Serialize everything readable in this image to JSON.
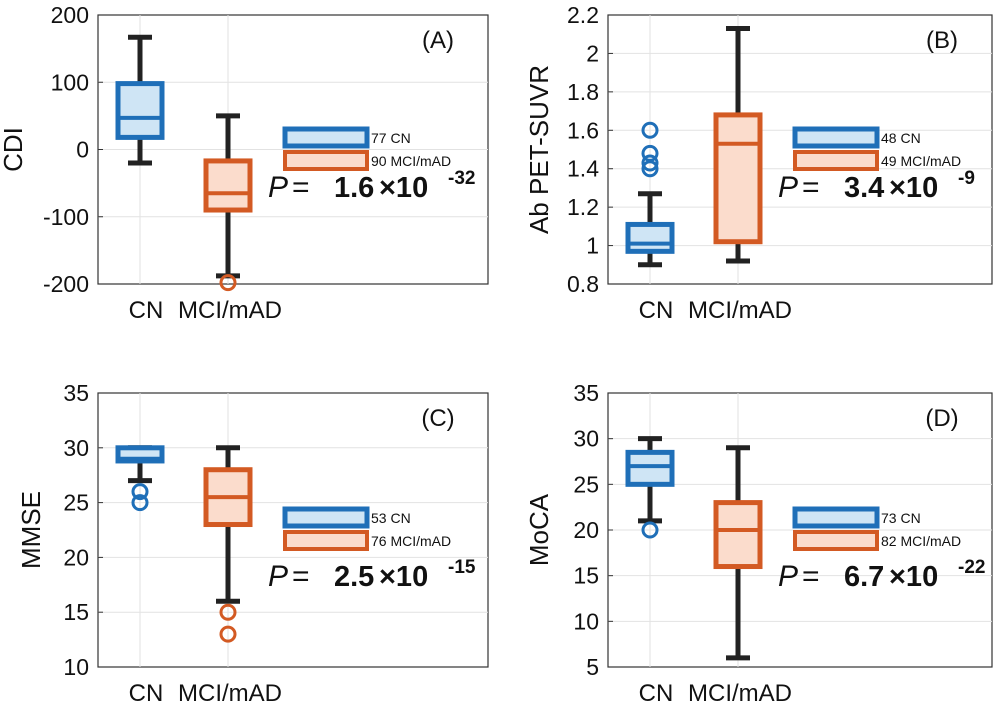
{
  "colors": {
    "cn_edge": "#1f6fb8",
    "cn_fill": "#cfe5f5",
    "mci_edge": "#d35a23",
    "mci_fill": "#fbdccc",
    "whisker": "#222222",
    "grid": "#e2e2e2",
    "axis": "#333333"
  },
  "chart_data": [
    {
      "type": "box",
      "panel_label": "(A)",
      "ylabel": "CDI",
      "ylim": [
        -200,
        200
      ],
      "yticks": [
        -200,
        -100,
        0,
        100,
        200
      ],
      "ytick_labels": [
        "-200",
        "-100",
        "0",
        "100",
        "200"
      ],
      "categories": [
        "CN",
        "MCI/mAD"
      ],
      "series": [
        {
          "name": "CN",
          "whisker_low": -20,
          "q1": 18,
          "median": 47,
          "q3": 98,
          "whisker_high": 167,
          "outliers": []
        },
        {
          "name": "MCI/mAD",
          "whisker_low": -188,
          "q1": -90,
          "median": -65,
          "q3": -17,
          "whisker_high": 50,
          "outliers": [
            -198
          ]
        }
      ],
      "legend": [
        "77 CN",
        "90 MCI/mAD"
      ],
      "p_label": "P",
      "p_eq": "=",
      "p_mantissa": "1.6",
      "p_times": "×10",
      "p_exponent": "-32"
    },
    {
      "type": "box",
      "panel_label": "(B)",
      "ylabel": "Ab PET-SUVR",
      "ylim": [
        0.8,
        2.2
      ],
      "yticks": [
        0.8,
        1.0,
        1.2,
        1.4,
        1.6,
        1.8,
        2.0,
        2.2
      ],
      "ytick_labels": [
        "0.8",
        "1",
        "1.2",
        "1.4",
        "1.6",
        "1.8",
        "2",
        "2.2"
      ],
      "categories": [
        "CN",
        "MCI/mAD"
      ],
      "series": [
        {
          "name": "CN",
          "whisker_low": 0.9,
          "q1": 0.97,
          "median": 1.01,
          "q3": 1.11,
          "whisker_high": 1.27,
          "outliers": [
            1.4,
            1.43,
            1.48,
            1.6
          ]
        },
        {
          "name": "MCI/mAD",
          "whisker_low": 0.92,
          "q1": 1.02,
          "median": 1.53,
          "q3": 1.68,
          "whisker_high": 2.13,
          "outliers": []
        }
      ],
      "legend": [
        "48 CN",
        "49 MCI/mAD"
      ],
      "p_label": "P",
      "p_eq": "=",
      "p_mantissa": "3.4",
      "p_times": "×10",
      "p_exponent": "-9"
    },
    {
      "type": "box",
      "panel_label": "(C)",
      "ylabel": "MMSE",
      "ylim": [
        10,
        35
      ],
      "yticks": [
        10,
        15,
        20,
        25,
        30,
        35
      ],
      "ytick_labels": [
        "10",
        "15",
        "20",
        "25",
        "30",
        "35"
      ],
      "categories": [
        "CN",
        "MCI/mAD"
      ],
      "series": [
        {
          "name": "CN",
          "whisker_low": 27,
          "q1": 28.8,
          "median": 29,
          "q3": 30,
          "whisker_high": 30,
          "outliers": [
            26,
            25
          ]
        },
        {
          "name": "MCI/mAD",
          "whisker_low": 16,
          "q1": 23,
          "median": 25.5,
          "q3": 28,
          "whisker_high": 30,
          "outliers": [
            15,
            13
          ]
        }
      ],
      "legend": [
        "53 CN",
        "76 MCI/mAD"
      ],
      "p_label": "P",
      "p_eq": "=",
      "p_mantissa": "2.5",
      "p_times": "×10",
      "p_exponent": "-15"
    },
    {
      "type": "box",
      "panel_label": "(D)",
      "ylabel": "MoCA",
      "ylim": [
        5,
        35
      ],
      "yticks": [
        5,
        10,
        15,
        20,
        25,
        30,
        35
      ],
      "ytick_labels": [
        "5",
        "10",
        "15",
        "20",
        "25",
        "30",
        "35"
      ],
      "categories": [
        "CN",
        "MCI/mAD"
      ],
      "series": [
        {
          "name": "CN",
          "whisker_low": 21,
          "q1": 25,
          "median": 27,
          "q3": 28.5,
          "whisker_high": 30,
          "outliers": [
            20
          ]
        },
        {
          "name": "MCI/mAD",
          "whisker_low": 6,
          "q1": 16,
          "median": 20,
          "q3": 23,
          "whisker_high": 29,
          "outliers": []
        }
      ],
      "legend": [
        "73 CN",
        "82 MCI/mAD"
      ],
      "p_label": "P",
      "p_eq": "=",
      "p_mantissa": "6.7",
      "p_times": "×10",
      "p_exponent": "-22"
    }
  ]
}
